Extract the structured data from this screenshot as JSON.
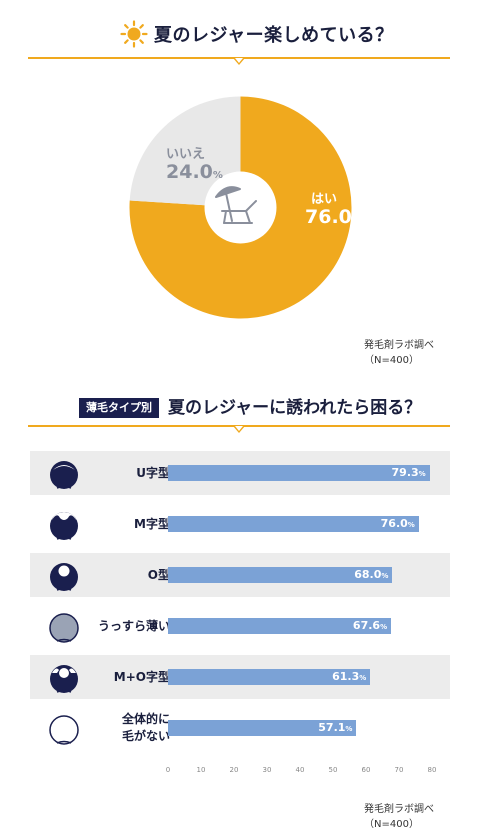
{
  "section1": {
    "title": "夏のレジャー楽しめている？",
    "source": "発毛剤ラボ調べ（N=400）"
  },
  "section2": {
    "badge": "薄毛タイプ別",
    "title": "夏のレジャーに誘われたら困る？",
    "source": "発毛剤ラボ調べ（N=400）"
  },
  "colors": {
    "accent": "#f0a91e",
    "no": "#e8e8e8",
    "bar": "#7ba2d6",
    "navy": "#1a1f4e"
  },
  "icons": {
    "title_icon": "sun-icon",
    "center_icon": "beach-chair-umbrella-icon"
  },
  "chart_data": [
    {
      "type": "pie",
      "title": "夏のレジャー楽しめている？",
      "slices": [
        {
          "label": "はい",
          "value": 76.0,
          "value_text": "76.0",
          "unit": "%"
        },
        {
          "label": "いいえ",
          "value": 24.0,
          "value_text": "24.0",
          "unit": "%"
        }
      ]
    },
    {
      "type": "bar",
      "orientation": "horizontal",
      "title": "夏のレジャーに誘われたら困る？",
      "categories": [
        "U字型",
        "M字型",
        "O型",
        "うっすら薄い",
        "M+O字型",
        "全体的に\n毛がない"
      ],
      "values": [
        79.3,
        76.0,
        68.0,
        67.6,
        61.3,
        57.1
      ],
      "value_texts": [
        "79.3",
        "76.0",
        "68.0",
        "67.6",
        "61.3",
        "57.1"
      ],
      "unit": "%",
      "xlim": [
        0,
        80
      ],
      "ticks": [
        0,
        10,
        20,
        30,
        40,
        50,
        60,
        70,
        80
      ],
      "tick_labels": [
        "0",
        "10",
        "20",
        "30",
        "40",
        "50",
        "60",
        "70",
        "80"
      ],
      "head_types": [
        "u",
        "m",
        "o",
        "thin",
        "mo",
        "bald"
      ]
    }
  ]
}
